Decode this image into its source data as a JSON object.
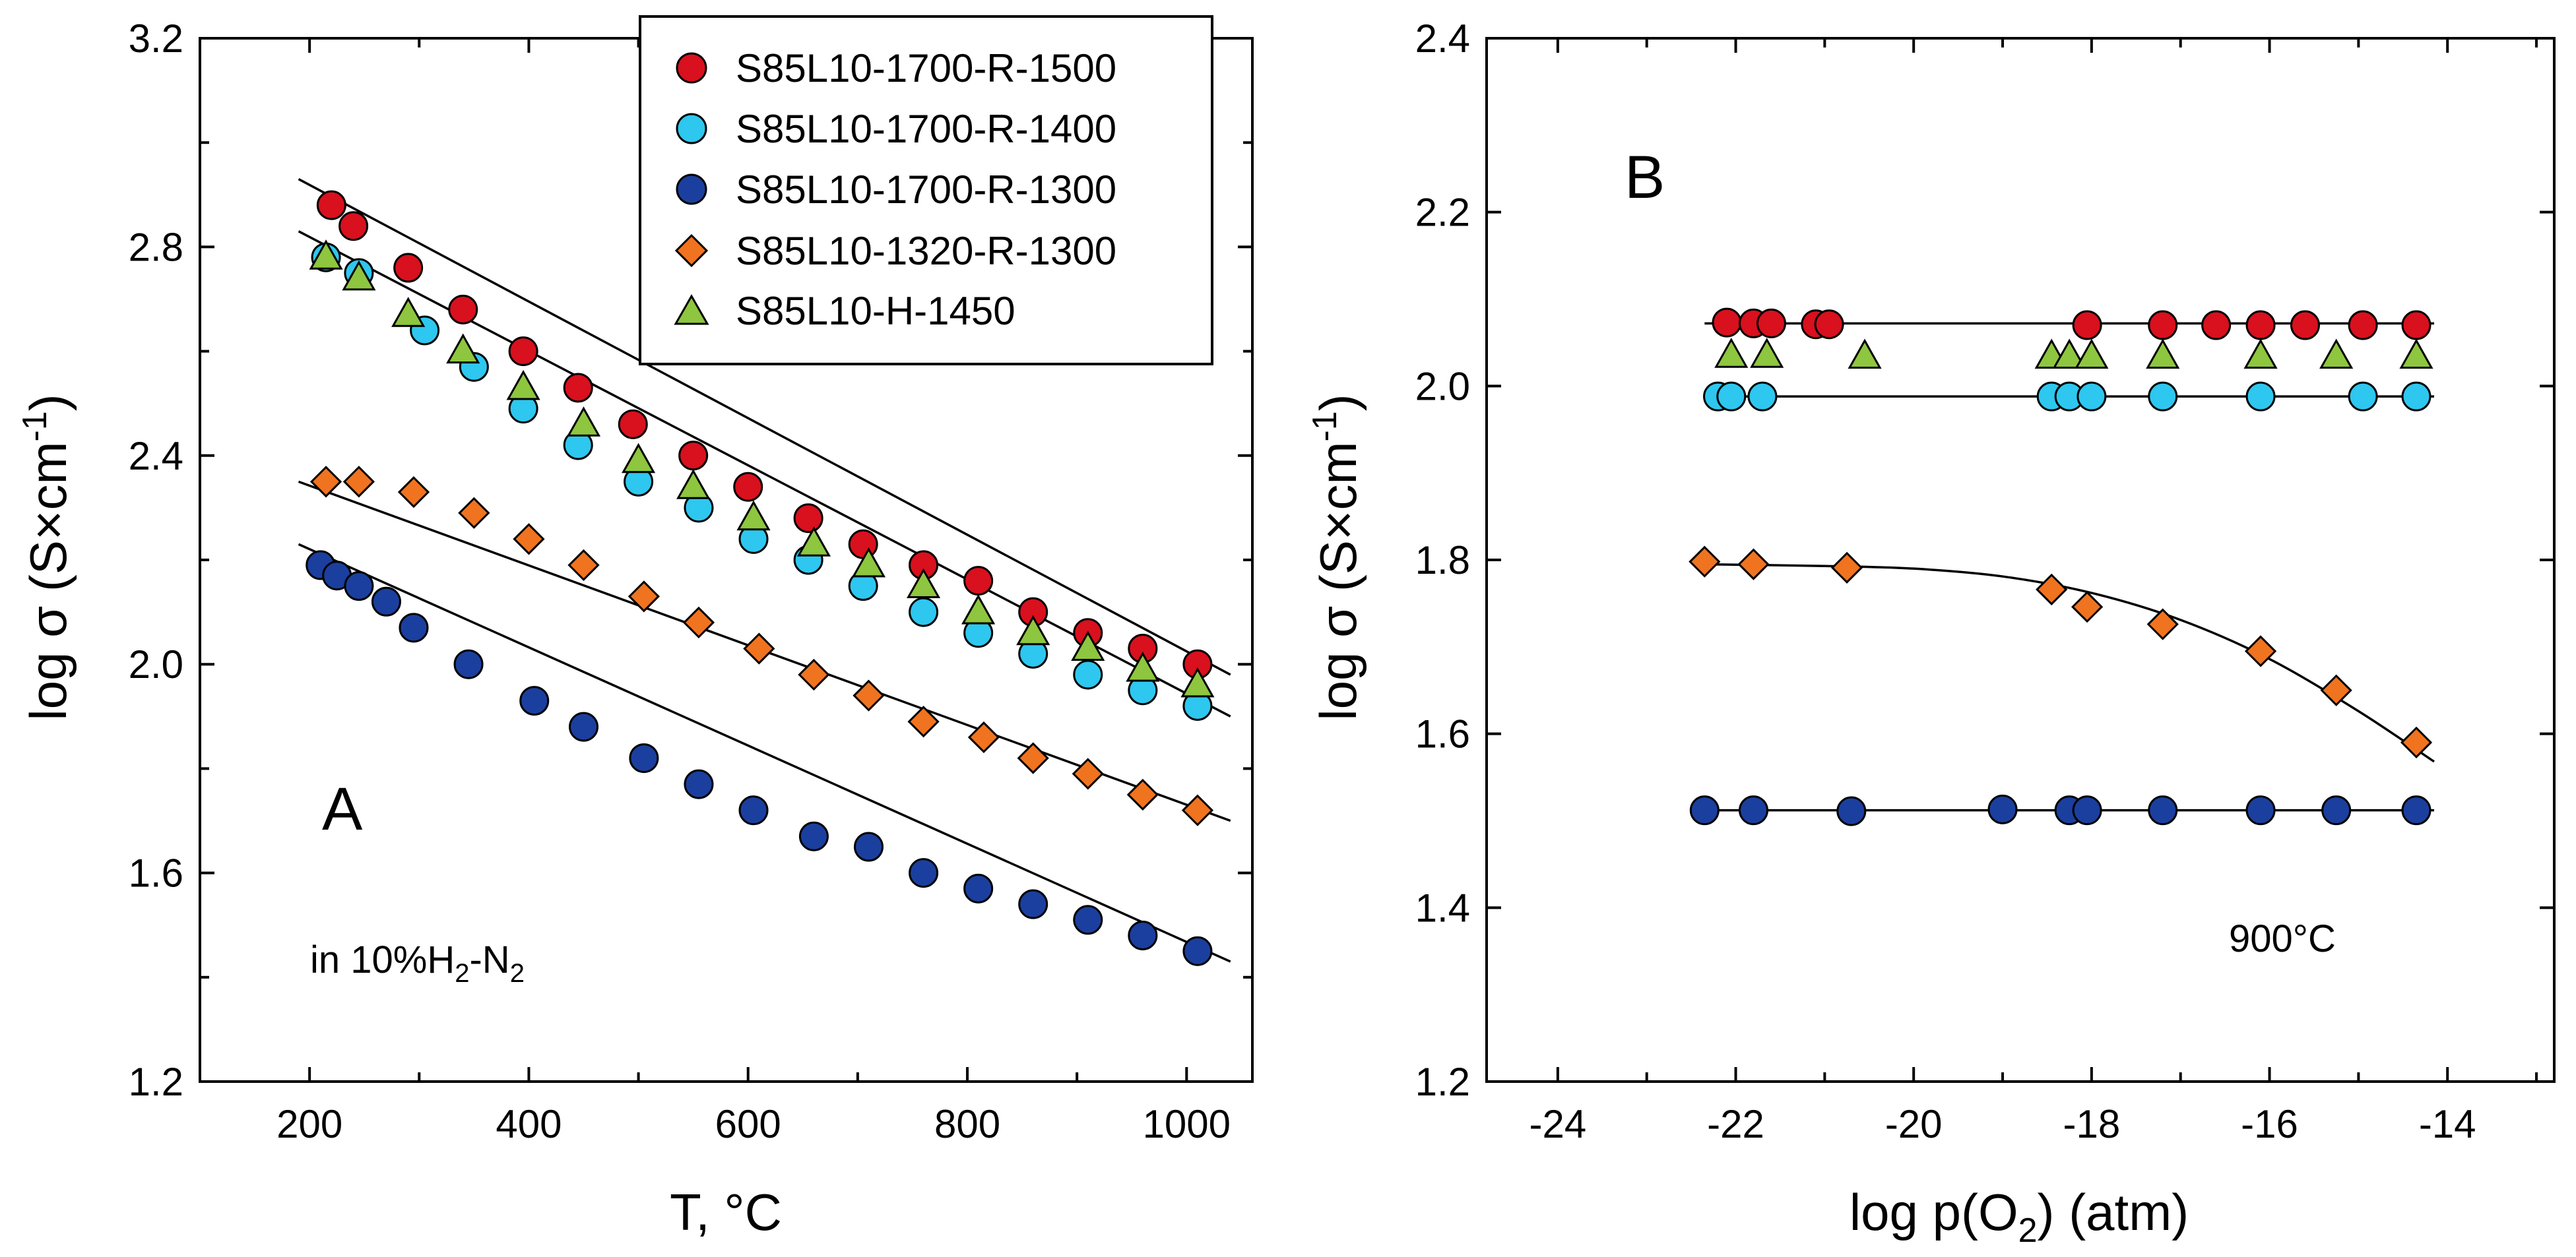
{
  "chart_data": [
    {
      "id": "A",
      "type": "scatter",
      "panel_label": "A",
      "xlabel": "T, °C",
      "ylabel_main": "log σ (S×cm",
      "ylabel_sup": "-1",
      "ylabel_close": ")",
      "xlim": [
        100,
        1060
      ],
      "ylim": [
        1.2,
        3.2
      ],
      "xticks": [
        200,
        400,
        600,
        800,
        1000
      ],
      "yticks": [
        1.2,
        1.6,
        2.0,
        2.4,
        2.8,
        3.2
      ],
      "ytick_labels": [
        "1.2",
        "1.6",
        "2.0",
        "2.4",
        "2.8",
        "3.2"
      ],
      "annotation": {
        "prefix": "in 10%H",
        "sub1": "2",
        "mid": "-N",
        "sub2": "2"
      },
      "legend": {
        "position": "top-right"
      },
      "series": [
        {
          "name": "S85L10-1700-R-1500",
          "marker": "circle",
          "color": "#d9101d",
          "x": [
            220,
            240,
            290,
            340,
            395,
            445,
            495,
            550,
            600,
            655,
            705,
            760,
            810,
            860,
            910,
            960,
            1010
          ],
          "y": [
            2.88,
            2.84,
            2.76,
            2.68,
            2.6,
            2.53,
            2.46,
            2.4,
            2.34,
            2.28,
            2.23,
            2.19,
            2.16,
            2.1,
            2.06,
            2.03,
            2.0
          ],
          "fit_x": [
            190,
            1040
          ],
          "fit_y": [
            2.93,
            1.98
          ]
        },
        {
          "name": "S85L10-1700-R-1400",
          "marker": "circle",
          "color": "#2ec7ef",
          "x": [
            215,
            245,
            305,
            350,
            395,
            445,
            500,
            555,
            605,
            655,
            705,
            760,
            810,
            860,
            910,
            960,
            1010
          ],
          "y": [
            2.78,
            2.75,
            2.64,
            2.57,
            2.49,
            2.42,
            2.35,
            2.3,
            2.24,
            2.2,
            2.15,
            2.1,
            2.06,
            2.02,
            1.98,
            1.95,
            1.92
          ],
          "fit_x": [
            190,
            1040
          ],
          "fit_y": [
            2.83,
            1.9
          ]
        },
        {
          "name": "S85L10-1700-R-1300",
          "marker": "circle",
          "color": "#1b3f9e",
          "x": [
            210,
            225,
            245,
            270,
            295,
            345,
            405,
            450,
            505,
            555,
            605,
            660,
            710,
            760,
            810,
            860,
            910,
            960,
            1010
          ],
          "y": [
            2.19,
            2.17,
            2.15,
            2.12,
            2.07,
            2.0,
            1.93,
            1.88,
            1.82,
            1.77,
            1.72,
            1.67,
            1.65,
            1.6,
            1.57,
            1.54,
            1.51,
            1.48,
            1.45
          ],
          "fit_x": [
            190,
            1040
          ],
          "fit_y": [
            2.23,
            1.43
          ]
        },
        {
          "name": "S85L10-1320-R-1300",
          "marker": "diamond",
          "color": "#f07320",
          "x": [
            215,
            245,
            295,
            350,
            400,
            450,
            505,
            555,
            610,
            660,
            710,
            760,
            815,
            860,
            910,
            960,
            1010
          ],
          "y": [
            2.35,
            2.35,
            2.33,
            2.29,
            2.24,
            2.19,
            2.13,
            2.08,
            2.03,
            1.98,
            1.94,
            1.89,
            1.86,
            1.82,
            1.79,
            1.75,
            1.72
          ],
          "fit_x": [
            190,
            1040
          ],
          "fit_y": [
            2.35,
            1.7
          ]
        },
        {
          "name": "S85L10-H-1450",
          "marker": "triangle",
          "color": "#8ec63f",
          "x": [
            215,
            245,
            290,
            340,
            395,
            450,
            500,
            550,
            605,
            660,
            710,
            760,
            810,
            860,
            910,
            960,
            1010
          ],
          "y": [
            2.78,
            2.74,
            2.67,
            2.6,
            2.53,
            2.46,
            2.39,
            2.34,
            2.28,
            2.23,
            2.19,
            2.15,
            2.1,
            2.06,
            2.03,
            1.99,
            1.96
          ]
        }
      ]
    },
    {
      "id": "B",
      "type": "scatter",
      "panel_label": "B",
      "xlabel_main": "log p(O",
      "xlabel_sub": "2",
      "xlabel_close": ") (atm)",
      "ylabel_main": "log σ (S×cm",
      "ylabel_sup": "-1",
      "ylabel_close": ")",
      "xlim": [
        -24.8,
        -12.8
      ],
      "ylim": [
        1.2,
        2.4
      ],
      "xticks": [
        -24,
        -22,
        -20,
        -18,
        -16,
        -14
      ],
      "xticks_minor": [
        -23,
        -21,
        -19,
        -17,
        -15,
        -13
      ],
      "yticks": [
        1.2,
        1.4,
        1.6,
        1.8,
        2.0,
        2.2,
        2.4
      ],
      "ytick_labels": [
        "1.2",
        "1.4",
        "1.6",
        "1.8",
        "2.0",
        "2.2",
        "2.4"
      ],
      "annotation": "900°C",
      "series": [
        {
          "name": "S85L10-1700-R-1500",
          "marker": "circle",
          "color": "#d9101d",
          "x": [
            -22.1,
            -21.8,
            -21.6,
            -21.1,
            -20.95,
            -18.05,
            -17.2,
            -16.6,
            -16.1,
            -15.6,
            -14.95,
            -14.35
          ],
          "y": [
            2.073,
            2.072,
            2.072,
            2.071,
            2.071,
            2.07,
            2.07,
            2.07,
            2.07,
            2.07,
            2.07,
            2.07
          ],
          "fit_x": [
            -22.35,
            -14.15
          ],
          "fit_y": [
            2.072,
            2.072
          ]
        },
        {
          "name": "S85L10-1700-R-1400",
          "marker": "circle",
          "color": "#2ec7ef",
          "x": [
            -22.2,
            -22.05,
            -21.7,
            -18.45,
            -18.25,
            -18.0,
            -17.2,
            -16.1,
            -14.95,
            -14.35
          ],
          "y": [
            1.988,
            1.988,
            1.988,
            1.988,
            1.988,
            1.988,
            1.988,
            1.988,
            1.988,
            1.988
          ],
          "fit_x": [
            -22.35,
            -14.15
          ],
          "fit_y": [
            1.988,
            1.988
          ]
        },
        {
          "name": "S85L10-1700-R-1300",
          "marker": "circle",
          "color": "#1b3f9e",
          "x": [
            -22.35,
            -21.8,
            -20.7,
            -19.0,
            -18.25,
            -18.05,
            -17.2,
            -16.1,
            -15.25,
            -14.35
          ],
          "y": [
            1.512,
            1.512,
            1.511,
            1.513,
            1.512,
            1.512,
            1.512,
            1.512,
            1.512,
            1.512
          ],
          "fit_x": [
            -22.35,
            -14.15
          ],
          "fit_y": [
            1.512,
            1.512
          ]
        },
        {
          "name": "S85L10-1320-R-1300",
          "marker": "diamond",
          "color": "#f07320",
          "x": [
            -22.35,
            -21.8,
            -20.75,
            -18.45,
            -18.05,
            -17.2,
            -16.1,
            -15.25,
            -14.35
          ],
          "y": [
            1.798,
            1.795,
            1.791,
            1.766,
            1.746,
            1.726,
            1.695,
            1.65,
            1.59
          ],
          "fit_x": [
            -22.35,
            -21.0,
            -20.0,
            -19.0,
            -18.0,
            -17.0,
            -16.0,
            -15.0,
            -14.15
          ],
          "fit_y": [
            1.795,
            1.793,
            1.79,
            1.781,
            1.762,
            1.731,
            1.686,
            1.626,
            1.568
          ]
        },
        {
          "name": "S85L10-H-1450",
          "marker": "triangle",
          "color": "#8ec63f",
          "x": [
            -22.05,
            -21.65,
            -20.55,
            -18.45,
            -18.25,
            -18.0,
            -17.2,
            -16.1,
            -15.25,
            -14.35
          ],
          "y": [
            2.035,
            2.035,
            2.034,
            2.034,
            2.034,
            2.034,
            2.034,
            2.034,
            2.034,
            2.034
          ]
        }
      ]
    }
  ]
}
